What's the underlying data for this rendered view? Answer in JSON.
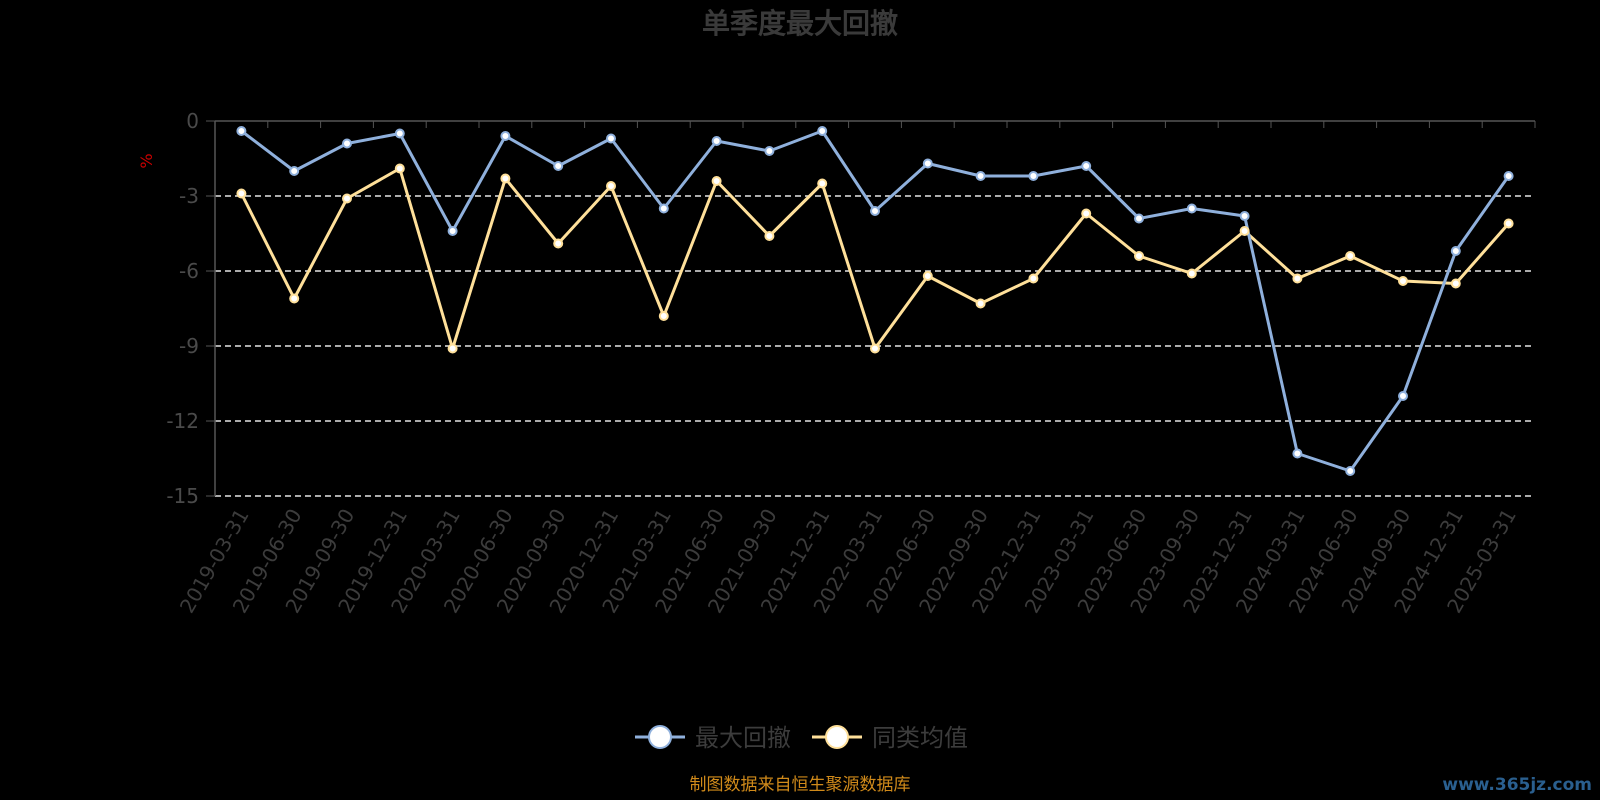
{
  "chart_data": {
    "type": "line",
    "title": "单季度最大回撤",
    "ylabel": "%",
    "ylim": [
      -15,
      0
    ],
    "yticks": [
      0,
      -3,
      -6,
      -9,
      -12,
      -15
    ],
    "grid": true,
    "legend_position": "bottom",
    "categories": [
      "2019-03-31",
      "2019-06-30",
      "2019-09-30",
      "2019-12-31",
      "2020-03-31",
      "2020-06-30",
      "2020-09-30",
      "2020-12-31",
      "2021-03-31",
      "2021-06-30",
      "2021-09-30",
      "2021-12-31",
      "2022-03-31",
      "2022-06-30",
      "2022-09-30",
      "2022-12-31",
      "2023-03-31",
      "2023-06-30",
      "2023-09-30",
      "2023-12-31",
      "2024-03-31",
      "2024-06-30",
      "2024-09-30",
      "2024-12-31",
      "2025-03-31"
    ],
    "series": [
      {
        "name": "最大回撤",
        "color": "#8fb0dc",
        "values": [
          -0.4,
          -2.0,
          -0.9,
          -0.5,
          -4.4,
          -0.6,
          -1.8,
          -0.7,
          -3.5,
          -0.8,
          -1.2,
          -0.4,
          -3.6,
          -1.7,
          -2.2,
          -2.2,
          -1.8,
          -3.9,
          -3.5,
          -3.8,
          -13.3,
          -14.0,
          -11.0,
          -5.2,
          -2.2
        ]
      },
      {
        "name": "同类均值",
        "color": "#ffe09a",
        "values": [
          -2.9,
          -7.1,
          -3.1,
          -1.9,
          -9.1,
          -2.3,
          -4.9,
          -2.6,
          -7.8,
          -2.4,
          -4.6,
          -2.5,
          -9.1,
          -6.2,
          -7.3,
          -6.3,
          -3.7,
          -5.4,
          -6.1,
          -4.4,
          -6.3,
          -5.4,
          -6.4,
          -6.5,
          -4.1
        ]
      }
    ]
  },
  "source_text": "制图数据来自恒生聚源数据库",
  "watermark_text": "www.365jz.com"
}
